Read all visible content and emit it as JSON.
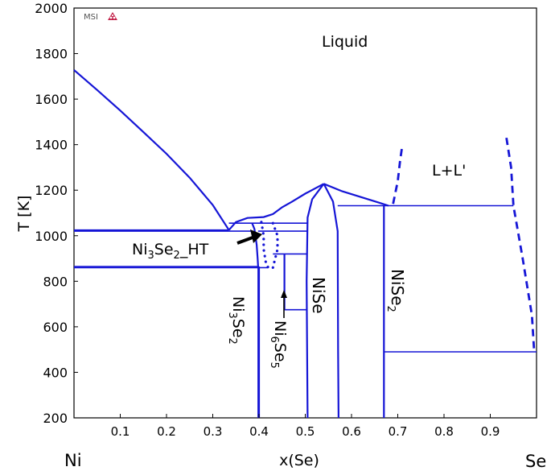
{
  "chart_data": {
    "type": "phase-diagram",
    "title": "",
    "logo_text": "MSI",
    "xlabel": "x(Se)",
    "ylabel": "T [K]",
    "xlim": [
      0,
      1
    ],
    "ylim": [
      200,
      2000
    ],
    "x_ticks": [
      0.1,
      0.2,
      0.3,
      0.4,
      0.5,
      0.6,
      0.7,
      0.8,
      0.9
    ],
    "x_tick_labels": [
      "0.1",
      "0.2",
      "0.3",
      "0.4",
      "0.5",
      "0.6",
      "0.7",
      "0.8",
      "0.9"
    ],
    "y_ticks": [
      200,
      400,
      600,
      800,
      1000,
      1200,
      1400,
      1600,
      1800,
      2000
    ],
    "y_tick_labels": [
      "200",
      "400",
      "600",
      "800",
      "1000",
      "1200",
      "1400",
      "1600",
      "1800",
      "2000"
    ],
    "end_labels": {
      "left": "Ni",
      "right": "Se"
    },
    "region_labels": {
      "liquid": "Liquid",
      "two_liquids": "L+L'",
      "ni3se2_ht": {
        "main": "Ni",
        "sub1": "3",
        "mid": "Se",
        "sub2": "2",
        "tail": "_HT"
      },
      "ni3se2": {
        "main": "Ni",
        "sub1": "3",
        "mid": "Se",
        "sub2": "2"
      },
      "ni6se5": {
        "main": "Ni",
        "sub1": "6",
        "mid": "Se",
        "sub2": "5"
      },
      "nise": "NiSe",
      "nise2": {
        "main": "NiSe",
        "sub": "2"
      }
    },
    "lines": [
      {
        "kind": "solid",
        "points": [
          [
            0,
            1728
          ],
          [
            0.05,
            1640
          ],
          [
            0.1,
            1550
          ],
          [
            0.15,
            1455
          ],
          [
            0.2,
            1360
          ],
          [
            0.25,
            1255
          ],
          [
            0.3,
            1135
          ],
          [
            0.335,
            1025
          ]
        ]
      },
      {
        "kind": "solid",
        "points": [
          [
            0.335,
            1025
          ],
          [
            0.35,
            1060
          ],
          [
            0.375,
            1078
          ],
          [
            0.41,
            1082
          ],
          [
            0.43,
            1095
          ],
          [
            0.45,
            1125
          ],
          [
            0.47,
            1148
          ],
          [
            0.5,
            1185
          ],
          [
            0.54,
            1228
          ]
        ]
      },
      {
        "kind": "solid",
        "points": [
          [
            0.54,
            1228
          ],
          [
            0.58,
            1195
          ],
          [
            0.62,
            1170
          ],
          [
            0.66,
            1145
          ],
          [
            0.68,
            1132
          ]
        ]
      },
      {
        "kind": "solid",
        "points": [
          [
            0.505,
            200
          ],
          [
            0.503,
            800
          ],
          [
            0.505,
            1080
          ],
          [
            0.515,
            1160
          ],
          [
            0.54,
            1228
          ]
        ]
      },
      {
        "kind": "solid",
        "points": [
          [
            0.54,
            1228
          ],
          [
            0.56,
            1150
          ],
          [
            0.57,
            1020
          ],
          [
            0.571,
            500
          ],
          [
            0.572,
            200
          ]
        ]
      },
      {
        "kind": "solid",
        "points": [
          [
            0.385,
            1055
          ],
          [
            0.39,
            1030
          ],
          [
            0.395,
            960
          ],
          [
            0.397,
            900
          ],
          [
            0.398,
            865
          ]
        ]
      },
      {
        "kind": "solid_thin",
        "points": [
          [
            0.398,
            865
          ],
          [
            0.398,
            200
          ]
        ]
      },
      {
        "kind": "solid",
        "points": [
          [
            0.4,
            865
          ],
          [
            0.4,
            200
          ]
        ]
      },
      {
        "kind": "solid",
        "points": [
          [
            0.455,
            920
          ],
          [
            0.455,
            675
          ]
        ]
      },
      {
        "kind": "solid",
        "points": [
          [
            0.67,
            1132
          ],
          [
            0.67,
            200
          ]
        ]
      },
      {
        "kind": "solid_thin",
        "points": [
          [
            0,
            1025
          ],
          [
            0.335,
            1025
          ]
        ]
      },
      {
        "kind": "solid_thin",
        "points": [
          [
            0,
            1020
          ],
          [
            0.385,
            1020
          ]
        ]
      },
      {
        "kind": "solid_thin",
        "points": [
          [
            0.335,
            1055
          ],
          [
            0.505,
            1055
          ]
        ]
      },
      {
        "kind": "solid_thin",
        "points": [
          [
            0,
            865
          ],
          [
            0.4,
            865
          ]
        ]
      },
      {
        "kind": "solid_thin",
        "points": [
          [
            0,
            860
          ],
          [
            0.42,
            860
          ]
        ]
      },
      {
        "kind": "solid_thin",
        "points": [
          [
            0.398,
            1020
          ],
          [
            0.505,
            1020
          ]
        ]
      },
      {
        "kind": "solid_thin",
        "points": [
          [
            0.43,
            920
          ],
          [
            0.505,
            920
          ]
        ]
      },
      {
        "kind": "solid_thin",
        "points": [
          [
            0.455,
            675
          ],
          [
            0.505,
            675
          ]
        ]
      },
      {
        "kind": "solid_thin",
        "points": [
          [
            0.57,
            1132
          ],
          [
            0.95,
            1132
          ]
        ]
      },
      {
        "kind": "solid_thin",
        "points": [
          [
            0.67,
            490
          ],
          [
            1.0,
            490
          ]
        ]
      },
      {
        "kind": "dashed",
        "points": [
          [
            0.69,
            1140
          ],
          [
            0.7,
            1240
          ],
          [
            0.705,
            1330
          ],
          [
            0.71,
            1400
          ]
        ]
      },
      {
        "kind": "dashed",
        "points": [
          [
            0.935,
            1430
          ],
          [
            0.945,
            1300
          ],
          [
            0.95,
            1132
          ],
          [
            0.97,
            900
          ],
          [
            0.99,
            650
          ],
          [
            0.995,
            490
          ]
        ]
      },
      {
        "kind": "dotted",
        "points": [
          [
            0.405,
            1060
          ],
          [
            0.41,
            1000
          ],
          [
            0.41,
            940
          ],
          [
            0.415,
            880
          ],
          [
            0.42,
            860
          ]
        ]
      },
      {
        "kind": "dotted",
        "points": [
          [
            0.43,
            1055
          ],
          [
            0.44,
            1000
          ],
          [
            0.44,
            940
          ],
          [
            0.435,
            900
          ],
          [
            0.43,
            860
          ]
        ]
      }
    ]
  }
}
